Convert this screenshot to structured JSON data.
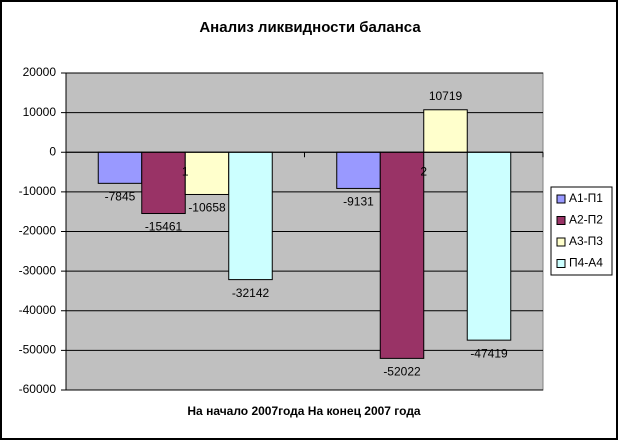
{
  "chart_data": {
    "type": "bar",
    "title": "Анализ ликвидности баланса",
    "x_label": "На начало 2007года На конец 2007 года",
    "categories": [
      "1",
      "2"
    ],
    "series": [
      {
        "name": "А1-П1",
        "color": "#9999ff",
        "values": [
          -7845,
          -9131
        ]
      },
      {
        "name": "А2-П2",
        "color": "#993366",
        "values": [
          -15461,
          -52022
        ]
      },
      {
        "name": "А3-П3",
        "color": "#ffffcc",
        "values": [
          -10658,
          10719
        ]
      },
      {
        "name": "П4-А4",
        "color": "#ccffff",
        "values": [
          -32142,
          -47419
        ]
      }
    ],
    "ylim": [
      -60000,
      20000
    ],
    "yticks": [
      -60000,
      -50000,
      -40000,
      -30000,
      -20000,
      -10000,
      0,
      10000,
      20000
    ],
    "grid": true,
    "legend": "right",
    "plot_background": "#c0c0c0"
  }
}
